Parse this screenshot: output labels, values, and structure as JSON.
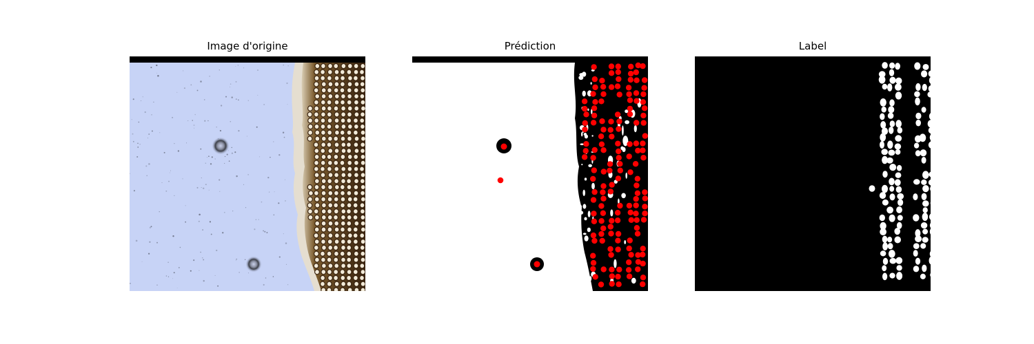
{
  "figure": {
    "panels": [
      {
        "title": "Image d'origine"
      },
      {
        "title": "Prédiction"
      },
      {
        "title": "Label"
      }
    ]
  },
  "colors": {
    "background_tint": "#c7d3f6",
    "tissue_dark": "#4a3318",
    "tissue_light": "#e9dcc2",
    "prediction_marker": "#ff0000",
    "mask_fg": "#ffffff",
    "mask_bg": "#000000"
  }
}
